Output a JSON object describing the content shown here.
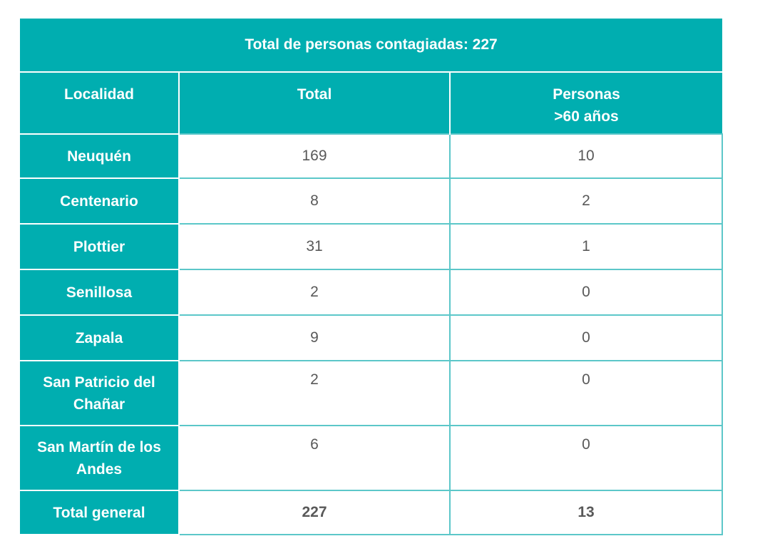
{
  "table": {
    "title": "Total de personas contagiadas: 227",
    "headers": {
      "localidad": "Localidad",
      "total": "Total",
      "mayores_line1": "Personas",
      "mayores_line2": ">60 años"
    },
    "rows": [
      {
        "localidad_l1": "Neuquén",
        "localidad_l2": "",
        "total": "169",
        "mayores": "10"
      },
      {
        "localidad_l1": "Centenario",
        "localidad_l2": "",
        "total": "8",
        "mayores": "2"
      },
      {
        "localidad_l1": "Plottier",
        "localidad_l2": "",
        "total": "31",
        "mayores": "1"
      },
      {
        "localidad_l1": "Senillosa",
        "localidad_l2": "",
        "total": "2",
        "mayores": "0"
      },
      {
        "localidad_l1": "Zapala",
        "localidad_l2": "",
        "total": "9",
        "mayores": "0"
      },
      {
        "localidad_l1": "San Patricio del",
        "localidad_l2": "Chañar",
        "total": "2",
        "mayores": "0"
      },
      {
        "localidad_l1": "San Martín de los",
        "localidad_l2": "Andes",
        "total": "6",
        "mayores": "0"
      }
    ],
    "total_row": {
      "label": "Total general",
      "total": "227",
      "mayores": "13"
    }
  },
  "colors": {
    "header_teal": "#00aeb0",
    "border_teal": "#5cc7c9",
    "value_text": "#595959"
  }
}
